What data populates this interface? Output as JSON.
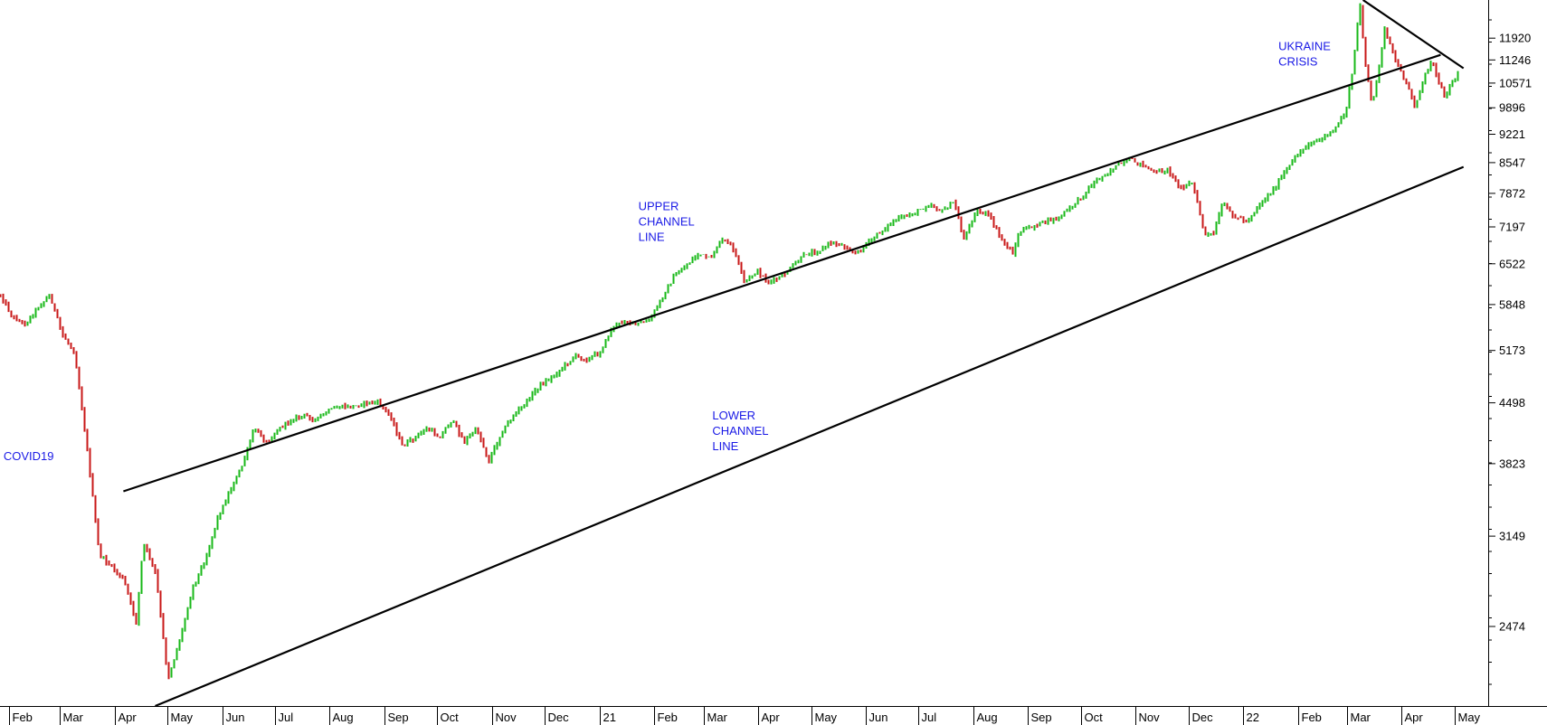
{
  "colors": {
    "background": "#ffffff",
    "up_candle": "#18b818",
    "down_candle": "#c81818",
    "annotation": "#1a1ae6",
    "trendline": "#000000",
    "axis": "#000000"
  },
  "chart_data": {
    "type": "candlestick",
    "title": "",
    "xlabel": "",
    "ylabel": "",
    "y_scale": "log",
    "ylim": [
      2000,
      13200
    ],
    "xlim": [
      "2020-01-27",
      "2022-05-20"
    ],
    "grid": false,
    "y_axis_position": "right",
    "y_ticks": [
      2474,
      3149,
      3823,
      4498,
      5173,
      5848,
      6522,
      7197,
      7872,
      8547,
      9221,
      9896,
      10571,
      11246,
      11920
    ],
    "x_ticks": [
      {
        "date": "2020-02-01",
        "label": "Feb"
      },
      {
        "date": "2020-03-01",
        "label": "Mar"
      },
      {
        "date": "2020-04-01",
        "label": "Apr"
      },
      {
        "date": "2020-05-01",
        "label": "May"
      },
      {
        "date": "2020-06-01",
        "label": "Jun"
      },
      {
        "date": "2020-07-01",
        "label": "Jul"
      },
      {
        "date": "2020-08-01",
        "label": "Aug"
      },
      {
        "date": "2020-09-01",
        "label": "Sep"
      },
      {
        "date": "2020-10-01",
        "label": "Oct"
      },
      {
        "date": "2020-11-01",
        "label": "Nov"
      },
      {
        "date": "2020-12-01",
        "label": "Dec"
      },
      {
        "date": "2021-01-01",
        "label": "21"
      },
      {
        "date": "2021-02-01",
        "label": "Feb"
      },
      {
        "date": "2021-03-01",
        "label": "Mar"
      },
      {
        "date": "2021-04-01",
        "label": "Apr"
      },
      {
        "date": "2021-05-01",
        "label": "May"
      },
      {
        "date": "2021-06-01",
        "label": "Jun"
      },
      {
        "date": "2021-07-01",
        "label": "Jul"
      },
      {
        "date": "2021-08-01",
        "label": "Aug"
      },
      {
        "date": "2021-09-01",
        "label": "Sep"
      },
      {
        "date": "2021-10-01",
        "label": "Oct"
      },
      {
        "date": "2021-11-01",
        "label": "Nov"
      },
      {
        "date": "2021-12-01",
        "label": "Dec"
      },
      {
        "date": "2022-01-01",
        "label": "22"
      },
      {
        "date": "2022-02-01",
        "label": "Feb"
      },
      {
        "date": "2022-03-01",
        "label": "Mar"
      },
      {
        "date": "2022-04-01",
        "label": "Apr"
      },
      {
        "date": "2022-05-01",
        "label": "May"
      }
    ],
    "price_path": [
      [
        "2020-01-27",
        6000
      ],
      [
        "2020-02-03",
        5650
      ],
      [
        "2020-02-10",
        5550
      ],
      [
        "2020-02-17",
        5800
      ],
      [
        "2020-02-24",
        6000
      ],
      [
        "2020-03-02",
        5400
      ],
      [
        "2020-03-09",
        5150
      ],
      [
        "2020-03-16",
        4000
      ],
      [
        "2020-03-23",
        3000
      ],
      [
        "2020-03-30",
        2900
      ],
      [
        "2020-04-06",
        2800
      ],
      [
        "2020-04-13",
        2500
      ],
      [
        "2020-04-17",
        3100
      ],
      [
        "2020-04-24",
        2850
      ],
      [
        "2020-05-01",
        2150
      ],
      [
        "2020-05-08",
        2400
      ],
      [
        "2020-05-15",
        2750
      ],
      [
        "2020-05-22",
        2950
      ],
      [
        "2020-05-29",
        3300
      ],
      [
        "2020-06-05",
        3550
      ],
      [
        "2020-06-12",
        3800
      ],
      [
        "2020-06-19",
        4200
      ],
      [
        "2020-06-26",
        4050
      ],
      [
        "2020-07-03",
        4200
      ],
      [
        "2020-07-10",
        4300
      ],
      [
        "2020-07-17",
        4350
      ],
      [
        "2020-07-24",
        4300
      ],
      [
        "2020-07-31",
        4400
      ],
      [
        "2020-08-07",
        4450
      ],
      [
        "2020-08-14",
        4450
      ],
      [
        "2020-08-21",
        4500
      ],
      [
        "2020-08-28",
        4500
      ],
      [
        "2020-09-04",
        4350
      ],
      [
        "2020-09-11",
        4000
      ],
      [
        "2020-09-18",
        4100
      ],
      [
        "2020-09-25",
        4200
      ],
      [
        "2020-10-02",
        4100
      ],
      [
        "2020-10-09",
        4300
      ],
      [
        "2020-10-16",
        4050
      ],
      [
        "2020-10-23",
        4200
      ],
      [
        "2020-10-30",
        3850
      ],
      [
        "2020-11-06",
        4150
      ],
      [
        "2020-11-13",
        4350
      ],
      [
        "2020-11-20",
        4500
      ],
      [
        "2020-11-27",
        4700
      ],
      [
        "2020-12-04",
        4800
      ],
      [
        "2020-12-11",
        4950
      ],
      [
        "2020-12-18",
        5100
      ],
      [
        "2020-12-25",
        5050
      ],
      [
        "2021-01-01",
        5150
      ],
      [
        "2021-01-08",
        5500
      ],
      [
        "2021-01-15",
        5600
      ],
      [
        "2021-01-22",
        5550
      ],
      [
        "2021-01-29",
        5600
      ],
      [
        "2021-02-05",
        5950
      ],
      [
        "2021-02-12",
        6300
      ],
      [
        "2021-02-19",
        6500
      ],
      [
        "2021-02-26",
        6700
      ],
      [
        "2021-03-05",
        6600
      ],
      [
        "2021-03-10",
        6950
      ],
      [
        "2021-03-17",
        6850
      ],
      [
        "2021-03-24",
        6200
      ],
      [
        "2021-03-31",
        6400
      ],
      [
        "2021-04-07",
        6200
      ],
      [
        "2021-04-14",
        6300
      ],
      [
        "2021-04-21",
        6500
      ],
      [
        "2021-04-28",
        6700
      ],
      [
        "2021-05-05",
        6750
      ],
      [
        "2021-05-12",
        6900
      ],
      [
        "2021-05-19",
        6850
      ],
      [
        "2021-05-26",
        6700
      ],
      [
        "2021-06-02",
        6900
      ],
      [
        "2021-06-09",
        7100
      ],
      [
        "2021-06-16",
        7300
      ],
      [
        "2021-06-23",
        7400
      ],
      [
        "2021-06-30",
        7500
      ],
      [
        "2021-07-07",
        7650
      ],
      [
        "2021-07-14",
        7500
      ],
      [
        "2021-07-21",
        7700
      ],
      [
        "2021-07-26",
        6950
      ],
      [
        "2021-08-02",
        7500
      ],
      [
        "2021-08-09",
        7450
      ],
      [
        "2021-08-16",
        7000
      ],
      [
        "2021-08-23",
        6700
      ],
      [
        "2021-08-27",
        7100
      ],
      [
        "2021-09-03",
        7200
      ],
      [
        "2021-09-10",
        7300
      ],
      [
        "2021-09-17",
        7350
      ],
      [
        "2021-09-24",
        7550
      ],
      [
        "2021-10-01",
        7800
      ],
      [
        "2021-10-08",
        8100
      ],
      [
        "2021-10-15",
        8300
      ],
      [
        "2021-10-22",
        8500
      ],
      [
        "2021-10-29",
        8600
      ],
      [
        "2021-11-05",
        8500
      ],
      [
        "2021-11-12",
        8300
      ],
      [
        "2021-11-19",
        8400
      ],
      [
        "2021-11-26",
        8000
      ],
      [
        "2021-12-03",
        8100
      ],
      [
        "2021-12-10",
        7050
      ],
      [
        "2021-12-15",
        7050
      ],
      [
        "2021-12-20",
        7650
      ],
      [
        "2021-12-27",
        7400
      ],
      [
        "2022-01-03",
        7300
      ],
      [
        "2022-01-10",
        7650
      ],
      [
        "2022-01-17",
        7900
      ],
      [
        "2022-01-24",
        8300
      ],
      [
        "2022-01-31",
        8700
      ],
      [
        "2022-02-07",
        9000
      ],
      [
        "2022-02-14",
        9100
      ],
      [
        "2022-02-21",
        9300
      ],
      [
        "2022-02-28",
        9800
      ],
      [
        "2022-03-04",
        11000
      ],
      [
        "2022-03-08",
        13100
      ],
      [
        "2022-03-11",
        11200
      ],
      [
        "2022-03-15",
        9900
      ],
      [
        "2022-03-22",
        12200
      ],
      [
        "2022-03-29",
        11100
      ],
      [
        "2022-04-05",
        10400
      ],
      [
        "2022-04-08",
        9900
      ],
      [
        "2022-04-14",
        10800
      ],
      [
        "2022-04-18",
        11300
      ],
      [
        "2022-04-21",
        10700
      ],
      [
        "2022-04-25",
        10200
      ],
      [
        "2022-04-29",
        10600
      ],
      [
        "2022-05-04",
        10900
      ]
    ],
    "trendlines": [
      {
        "name": "upper-channel-line",
        "start": [
          "2020-04-06",
          3550
        ],
        "end": [
          "2022-04-23",
          11400
        ]
      },
      {
        "name": "lower-channel-line",
        "start": [
          "2020-04-24",
          2000
        ],
        "end": [
          "2022-05-06",
          8450
        ]
      },
      {
        "name": "downtrend-line",
        "start": [
          "2022-03-10",
          13200
        ],
        "end": [
          "2022-05-06",
          11000
        ]
      }
    ],
    "annotations": [
      {
        "text": [
          "COVID19"
        ],
        "date": "2020-01-29",
        "value": 3860
      },
      {
        "text": [
          "UPPER",
          "CHANNEL",
          "LINE"
        ],
        "date": "2021-01-23",
        "value": 7530
      },
      {
        "text": [
          "LOWER",
          "CHANNEL",
          "LINE"
        ],
        "date": "2021-03-06",
        "value": 4300
      },
      {
        "text": [
          "UKRAINE",
          "CRISIS"
        ],
        "date": "2022-01-21",
        "value": 11540
      }
    ]
  }
}
